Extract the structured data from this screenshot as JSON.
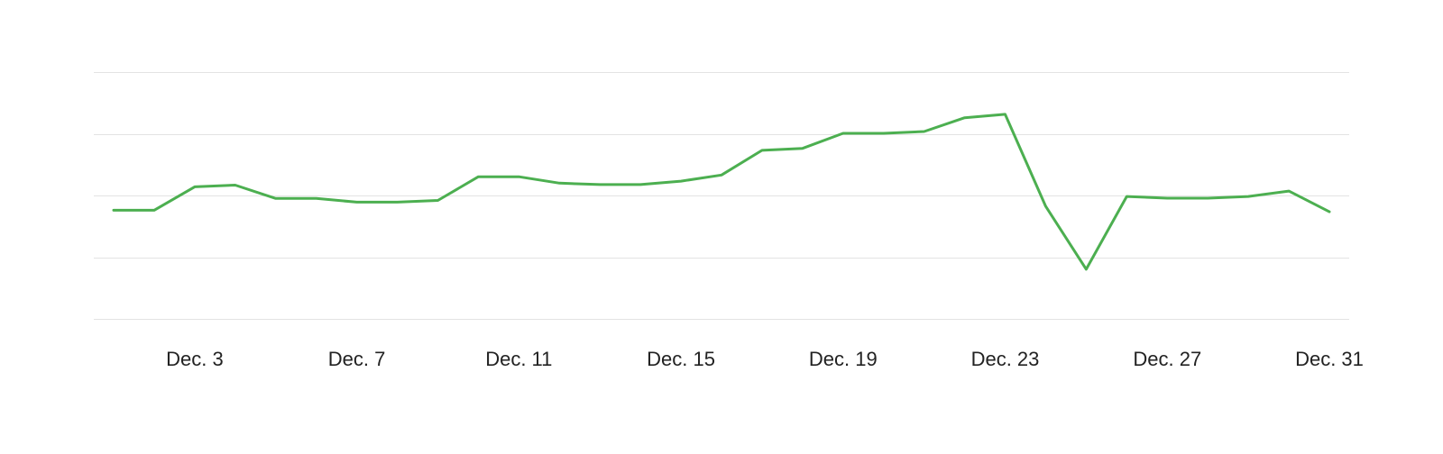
{
  "chart_data": {
    "type": "line",
    "title": "",
    "xlabel": "",
    "ylabel": "",
    "grid": true,
    "y_grid_lines": 5,
    "ylim": [
      0,
      100
    ],
    "x_ticks": [
      "Dec. 3",
      "Dec. 7",
      "Dec. 11",
      "Dec. 15",
      "Dec. 19",
      "Dec. 23",
      "Dec. 27",
      "Dec. 31"
    ],
    "x": [
      "Dec. 1",
      "Dec. 2",
      "Dec. 3",
      "Dec. 4",
      "Dec. 5",
      "Dec. 6",
      "Dec. 7",
      "Dec. 8",
      "Dec. 9",
      "Dec. 10",
      "Dec. 11",
      "Dec. 12",
      "Dec. 13",
      "Dec. 14",
      "Dec. 15",
      "Dec. 16",
      "Dec. 17",
      "Dec. 18",
      "Dec. 19",
      "Dec. 20",
      "Dec. 21",
      "Dec. 22",
      "Dec. 23",
      "Dec. 24",
      "Dec. 25",
      "Dec. 26",
      "Dec. 27",
      "Dec. 28",
      "Dec. 29",
      "Dec. 30",
      "Dec. 31"
    ],
    "series": [
      {
        "color": "#4caf50",
        "values": [
          44,
          44,
          53.5,
          54.2,
          48.8,
          48.8,
          47.3,
          47.3,
          48,
          57.6,
          57.6,
          55,
          54.4,
          54.4,
          55.8,
          58.3,
          68.3,
          69.1,
          75.2,
          75.2,
          75.9,
          81.5,
          82.9,
          45.6,
          20.1,
          49.6,
          48.9,
          48.9,
          49.6,
          51.8,
          43.4
        ]
      }
    ]
  }
}
